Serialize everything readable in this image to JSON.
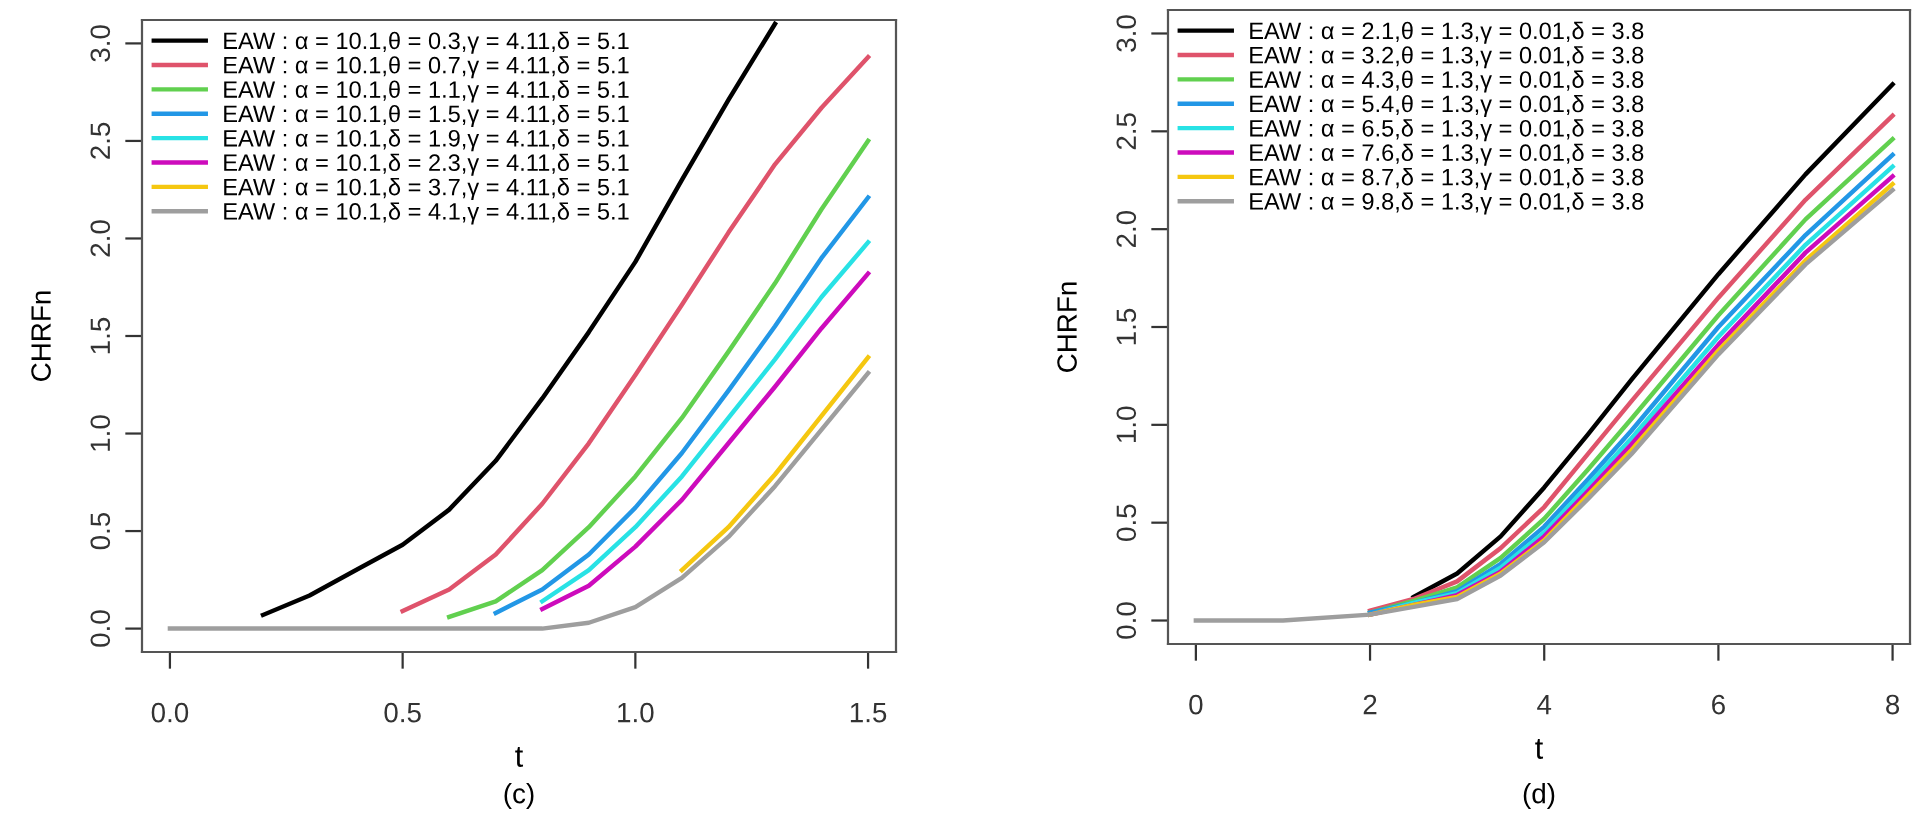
{
  "chart_data": [
    {
      "type": "line",
      "xlabel": "t",
      "ylabel": "CHRFn",
      "annotations": [
        "(c)"
      ],
      "legend": "top left",
      "grid": false,
      "xlim": [
        -0.06,
        1.56
      ],
      "ylim": [
        -0.12,
        3.12
      ],
      "xticks": [
        {
          "value": 0,
          "label": "0.0"
        },
        0.5,
        {
          "value": 1,
          "label": "1.0"
        },
        1.5
      ],
      "yticks": [
        {
          "value": 0,
          "label": "0.0"
        },
        0.5,
        {
          "value": 1,
          "label": "1.0"
        },
        1.5,
        {
          "value": 2,
          "label": "2.0"
        },
        2.5,
        {
          "value": 3,
          "label": "3.0"
        }
      ],
      "x": [
        0,
        0.1,
        0.2,
        0.3,
        0.4,
        0.5,
        0.6,
        0.7,
        0.8,
        0.9,
        1.0,
        1.1,
        1.2,
        1.3,
        1.4,
        1.5
      ],
      "series": [
        {
          "name": "EAW : α = 10.1,θ = 0.3,γ = 4.11,δ = 5.1",
          "color": "#000000",
          "values": [
            null,
            null,
            0.07,
            0.17,
            0.3,
            0.43,
            0.61,
            0.86,
            1.18,
            1.52,
            1.88,
            2.3,
            2.71,
            3.1,
            null,
            null
          ]
        },
        {
          "name": "EAW : α = 10.1,θ = 0.7,γ = 4.11,δ = 5.1",
          "color": "#df536b",
          "values": [
            null,
            null,
            null,
            null,
            null,
            0.09,
            0.2,
            0.38,
            0.64,
            0.95,
            1.3,
            1.66,
            2.03,
            2.38,
            2.67,
            2.93
          ]
        },
        {
          "name": "EAW : α = 10.1,θ = 1.1,γ = 4.11,δ = 5.1",
          "color": "#61d04f",
          "values": [
            null,
            null,
            null,
            null,
            null,
            null,
            0.06,
            0.14,
            0.3,
            0.52,
            0.78,
            1.08,
            1.42,
            1.77,
            2.15,
            2.5
          ]
        },
        {
          "name": "EAW : α = 10.1,θ = 1.5,γ = 4.11,δ = 5.1",
          "color": "#2297e6",
          "values": [
            null,
            null,
            null,
            null,
            null,
            null,
            null,
            0.08,
            0.2,
            0.38,
            0.62,
            0.9,
            1.22,
            1.55,
            1.9,
            2.21
          ]
        },
        {
          "name": "EAW : α = 10.1,δ = 1.9,γ = 4.11,δ = 5.1",
          "color": "#28e2e5",
          "values": [
            null,
            null,
            null,
            null,
            null,
            null,
            null,
            null,
            0.14,
            0.3,
            0.52,
            0.78,
            1.08,
            1.38,
            1.7,
            1.98
          ]
        },
        {
          "name": "EAW : α = 10.1,δ = 2.3,γ = 4.11,δ = 5.1",
          "color": "#cd0bbc",
          "values": [
            null,
            null,
            null,
            null,
            null,
            null,
            null,
            null,
            0.1,
            0.22,
            0.42,
            0.66,
            0.95,
            1.24,
            1.54,
            1.82
          ]
        },
        {
          "name": "EAW : α = 10.1,δ = 3.7,γ = 4.11,δ = 5.1",
          "color": "#f5c710",
          "values": [
            null,
            null,
            null,
            null,
            null,
            null,
            null,
            null,
            null,
            null,
            null,
            0.3,
            0.52,
            0.79,
            1.09,
            1.39
          ]
        },
        {
          "name": "EAW : α = 10.1,δ = 4.1,γ = 4.11,δ = 5.1",
          "color": "#9e9e9e",
          "values": [
            0,
            0,
            0,
            0,
            0,
            0,
            0,
            0,
            0,
            0.03,
            0.11,
            0.26,
            0.47,
            0.73,
            1.02,
            1.31
          ]
        }
      ]
    },
    {
      "type": "line",
      "xlabel": "t",
      "ylabel": "CHRFn",
      "annotations": [
        "(d)"
      ],
      "legend": "top left",
      "grid": false,
      "xlim": [
        -0.32,
        8.2
      ],
      "ylim": [
        -0.12,
        3.12
      ],
      "xticks": [
        0,
        2,
        4,
        6,
        8
      ],
      "yticks": [
        {
          "value": 0,
          "label": "0.0"
        },
        0.5,
        {
          "value": 1,
          "label": "1.0"
        },
        1.5,
        {
          "value": 2,
          "label": "2.0"
        },
        2.5,
        {
          "value": 3,
          "label": "3.0"
        }
      ],
      "x": [
        0,
        1,
        2,
        2.5,
        3,
        3.5,
        4,
        4.5,
        5,
        6,
        7,
        8
      ],
      "series": [
        {
          "name": "EAW : α = 2.1,θ = 1.3,γ = 0.01,δ = 3.8",
          "color": "#000000",
          "values": [
            null,
            null,
            null,
            0.12,
            0.24,
            0.43,
            0.68,
            0.95,
            1.23,
            1.77,
            2.28,
            2.74
          ]
        },
        {
          "name": "EAW : α = 3.2,θ = 1.3,γ = 0.01,δ = 3.8",
          "color": "#df536b",
          "values": [
            null,
            null,
            0.05,
            0.11,
            0.2,
            0.37,
            0.58,
            0.85,
            1.12,
            1.65,
            2.15,
            2.58
          ]
        },
        {
          "name": "EAW : α = 4.3,θ = 1.3,γ = 0.01,δ = 3.8",
          "color": "#61d04f",
          "values": [
            null,
            null,
            0.04,
            0.1,
            0.17,
            0.32,
            0.52,
            0.77,
            1.03,
            1.56,
            2.05,
            2.46
          ]
        },
        {
          "name": "EAW : α = 5.4,θ = 1.3,γ = 0.01,δ = 3.8",
          "color": "#2297e6",
          "values": [
            null,
            null,
            0.04,
            0.09,
            0.15,
            0.29,
            0.48,
            0.72,
            0.97,
            1.5,
            1.97,
            2.38
          ]
        },
        {
          "name": "EAW : α = 6.5,δ = 1.3,γ = 0.01,δ = 3.8",
          "color": "#28e2e5",
          "values": [
            null,
            null,
            0.03,
            0.09,
            0.14,
            0.27,
            0.45,
            0.69,
            0.93,
            1.45,
            1.92,
            2.32
          ]
        },
        {
          "name": "EAW : α = 7.6,δ = 1.3,γ = 0.01,δ = 3.8",
          "color": "#cd0bbc",
          "values": [
            null,
            null,
            0.03,
            0.08,
            0.13,
            0.25,
            0.43,
            0.66,
            0.9,
            1.41,
            1.88,
            2.27
          ]
        },
        {
          "name": "EAW : α = 8.7,δ = 1.3,γ = 0.01,δ = 3.8",
          "color": "#f5c710",
          "values": [
            null,
            null,
            0.03,
            0.08,
            0.12,
            0.24,
            0.41,
            0.64,
            0.87,
            1.38,
            1.84,
            2.23
          ]
        },
        {
          "name": "EAW : α = 9.8,δ = 1.3,γ = 0.01,δ = 3.8",
          "color": "#9e9e9e",
          "values": [
            0,
            0,
            0.03,
            0.07,
            0.11,
            0.23,
            0.4,
            0.62,
            0.85,
            1.36,
            1.82,
            2.2
          ]
        }
      ]
    }
  ]
}
